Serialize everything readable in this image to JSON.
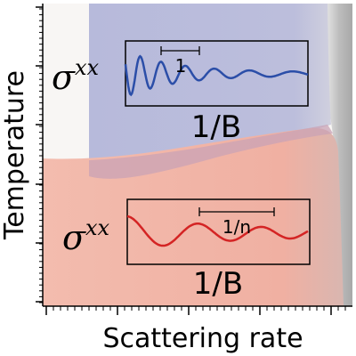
{
  "axes": {
    "x_label": "Scattering rate",
    "y_label": "Temperature"
  },
  "top_inset": {
    "ylabel": "σ",
    "ylabel_sup": "xx",
    "xlabel": "1/B",
    "period_label": "1",
    "curve_color": "#2b4ea8"
  },
  "bottom_inset": {
    "ylabel": "σ",
    "ylabel_sup": "xx",
    "xlabel": "1/B",
    "period_label": "1/n",
    "curve_color": "#d42424"
  },
  "colors": {
    "blue_region": "#b7badb",
    "red_region": "#f0b2a4",
    "gray_region": "#b0b0b0",
    "overlap": "#c7a0b8"
  }
}
